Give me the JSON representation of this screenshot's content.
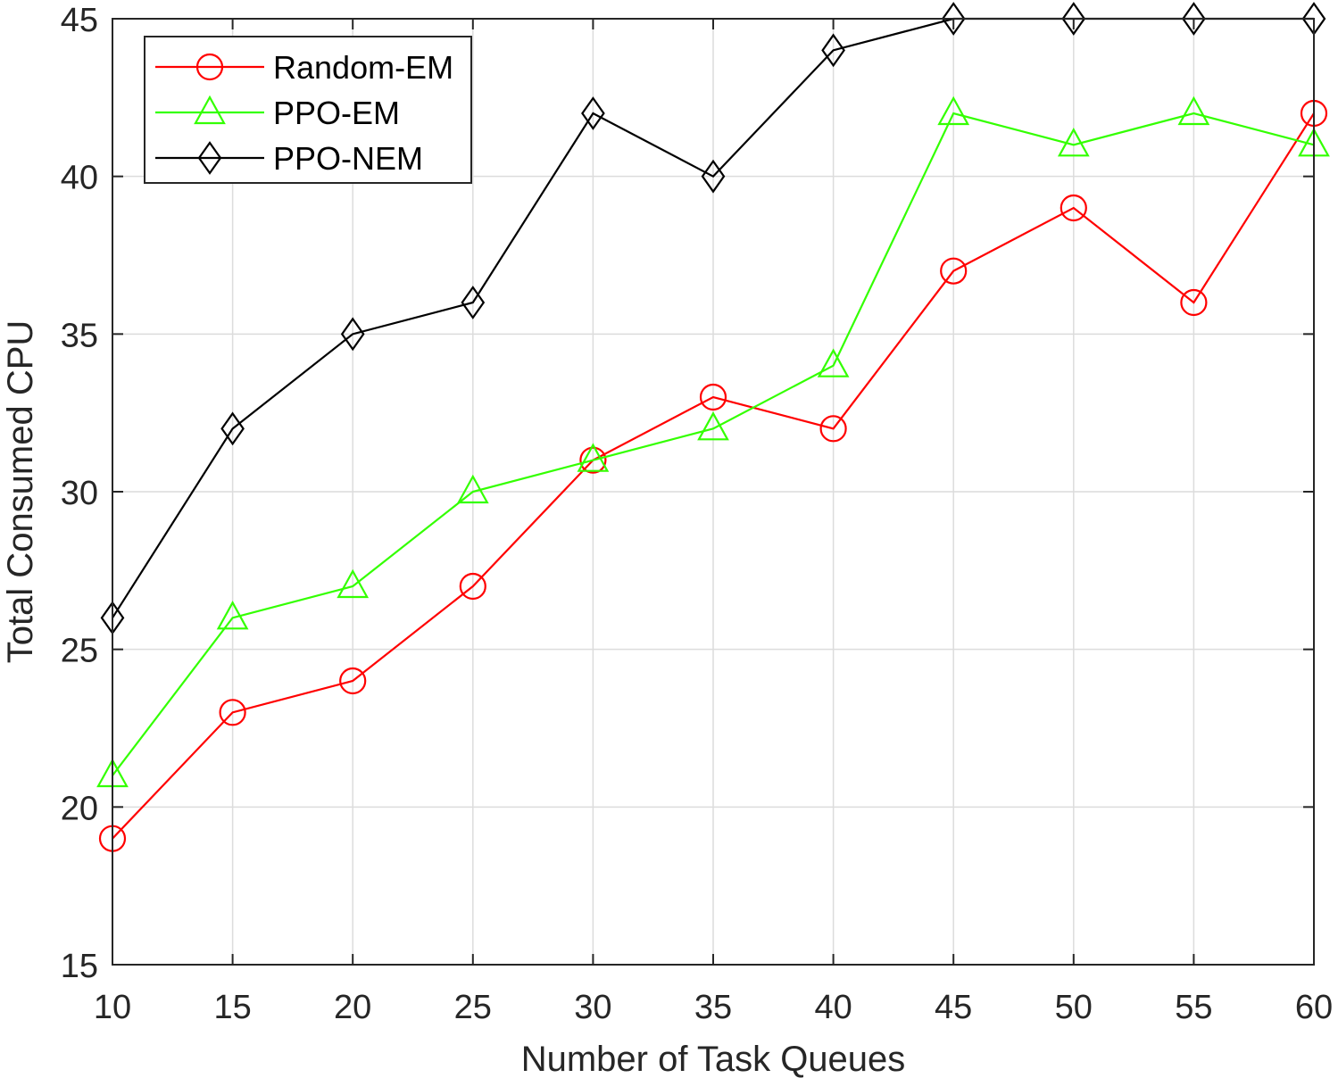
{
  "chart_data": {
    "type": "line",
    "xlabel": "Number of Task Queues",
    "ylabel": "Total Consumed CPU",
    "x": [
      10,
      15,
      20,
      25,
      30,
      35,
      40,
      45,
      50,
      55,
      60
    ],
    "xlim": [
      10,
      60
    ],
    "ylim": [
      15,
      45
    ],
    "xticks": [
      "10",
      "15",
      "20",
      "25",
      "30",
      "35",
      "40",
      "45",
      "50",
      "55",
      "60"
    ],
    "yticks": [
      "15",
      "20",
      "25",
      "30",
      "35",
      "40",
      "45"
    ],
    "grid": true,
    "legend_position": "top-left",
    "series": [
      {
        "name": "Random-EM",
        "color": "#ff0000",
        "marker": "circle",
        "values": [
          19,
          23,
          24,
          27,
          31,
          33,
          32,
          37,
          39,
          36,
          42
        ]
      },
      {
        "name": "PPO-EM",
        "color": "#33ff00",
        "marker": "triangle",
        "values": [
          21,
          26,
          27,
          30,
          31,
          32,
          34,
          42,
          41,
          42,
          41
        ]
      },
      {
        "name": "PPO-NEM",
        "color": "#000000",
        "marker": "diamond",
        "values": [
          26,
          32,
          35,
          36,
          42,
          40,
          44,
          45,
          45,
          45,
          45
        ]
      }
    ]
  }
}
